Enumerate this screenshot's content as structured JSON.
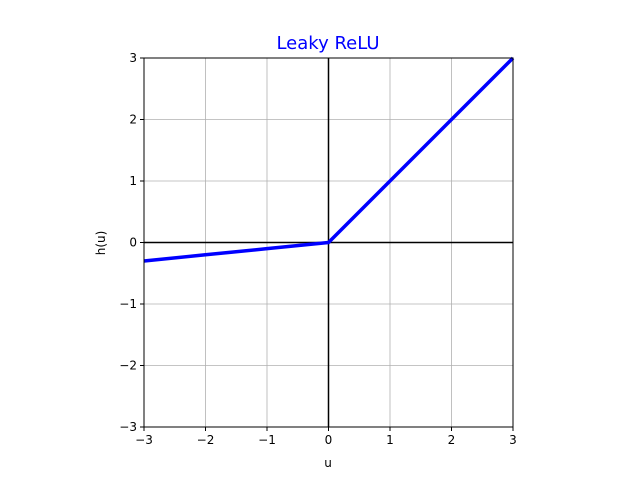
{
  "chart_data": {
    "type": "line",
    "title": "Leaky ReLU",
    "title_color": "#0000ff",
    "xlabel": "u",
    "ylabel": "h(u)",
    "xlim": [
      -3,
      3
    ],
    "ylim": [
      -3,
      3
    ],
    "xticks": [
      -3,
      -2,
      -1,
      0,
      1,
      2,
      3
    ],
    "yticks": [
      -3,
      -2,
      -1,
      0,
      1,
      2,
      3
    ],
    "xtick_labels": [
      "−3",
      "−2",
      "−1",
      "0",
      "1",
      "2",
      "3"
    ],
    "ytick_labels": [
      "−3",
      "−2",
      "−1",
      "0",
      "1",
      "2",
      "3"
    ],
    "grid": true,
    "zero_lines": true,
    "series": [
      {
        "color": "#0000ff",
        "x": [
          -3,
          -2,
          -1,
          0,
          1,
          2,
          3
        ],
        "y": [
          -0.3,
          -0.2,
          -0.1,
          0,
          1,
          2,
          3
        ]
      }
    ]
  }
}
